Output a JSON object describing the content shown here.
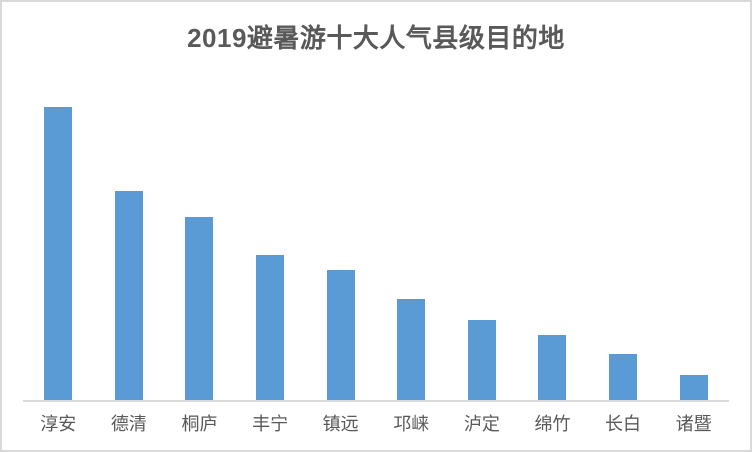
{
  "page": {
    "title": "2019避暑游十大人气县级目的地"
  },
  "colors": {
    "bar": "#5b9bd5",
    "axis_line": "#d9d9d9",
    "title_text": "#595959",
    "label_text": "#595959",
    "border": "#d9d9d9",
    "background": "#ffffff"
  },
  "chart_data": {
    "type": "bar",
    "title": "2019避暑游十大人气县级目的地",
    "categories": [
      "淳安",
      "德清",
      "桐庐",
      "丰宁",
      "镇远",
      "邛崃",
      "泸定",
      "绵竹",
      "长白",
      "诸暨"
    ],
    "values": [
      100,
      71.5,
      62.7,
      49.7,
      44.5,
      34.6,
      27.4,
      22.1,
      15.8,
      8.6
    ],
    "xlabel": "",
    "ylabel": "",
    "ylim": [
      0,
      110
    ],
    "grid": false,
    "legend": "none",
    "y_axis_visible": false,
    "bar_color": "#5b9bd5"
  }
}
